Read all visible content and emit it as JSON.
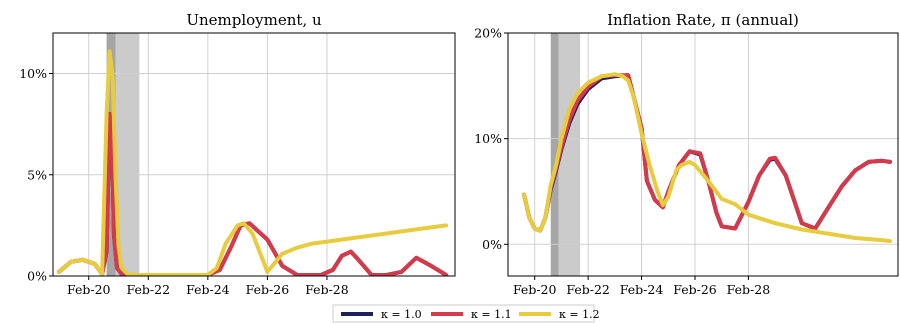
{
  "chart_data": [
    {
      "type": "line",
      "title": "Unemployment, u",
      "x_ticks": [
        "Feb-20",
        "Feb-22",
        "Feb-24",
        "Feb-26",
        "Feb-28"
      ],
      "y_ticks": [
        "0%",
        "5%",
        "10%"
      ],
      "ylim": [
        0,
        12
      ],
      "grid": true,
      "shaded_periods": [
        {
          "start": 0.6,
          "end": 0.9,
          "shade": "dark-gray"
        },
        {
          "start": 0.9,
          "end": 1.7,
          "shade": "light-gray"
        }
      ],
      "series": [
        {
          "name": "κ = 1.0",
          "color": "#1f1f5c",
          "x": [
            -1.0,
            -0.6,
            -0.2,
            0.2,
            0.45,
            0.6,
            0.7,
            0.78,
            0.85,
            0.95,
            1.1,
            1.4,
            2.0,
            3.0,
            3.4,
            4.0,
            4.4,
            4.8,
            5.1,
            5.4,
            6.0,
            6.5,
            7.0,
            7.5,
            7.8,
            8.2,
            8.5,
            8.8,
            9.0,
            9.5,
            10.0,
            10.5,
            11.0,
            11.5,
            12.0
          ],
          "values": [
            0.2,
            0.7,
            0.8,
            0.6,
            0.1,
            1.2,
            8.0,
            6.5,
            2.0,
            0.4,
            0.1,
            0.05,
            0.05,
            0.05,
            0.05,
            0.05,
            0.3,
            1.5,
            2.5,
            2.6,
            1.8,
            0.5,
            0.05,
            0.05,
            0.05,
            0.3,
            1.0,
            1.2,
            0.9,
            0.05,
            0.05,
            0.2,
            0.9,
            0.5,
            0.05
          ]
        },
        {
          "name": "κ = 1.1",
          "color": "#d43a4a",
          "x": [
            -1.0,
            -0.6,
            -0.2,
            0.2,
            0.45,
            0.6,
            0.7,
            0.78,
            0.85,
            0.95,
            1.1,
            1.4,
            2.0,
            3.0,
            3.4,
            4.0,
            4.4,
            4.8,
            5.1,
            5.4,
            6.0,
            6.5,
            7.0,
            7.5,
            7.8,
            8.2,
            8.5,
            8.8,
            9.0,
            9.5,
            10.0,
            10.5,
            11.0,
            11.5,
            12.0
          ],
          "values": [
            0.2,
            0.7,
            0.8,
            0.6,
            0.1,
            1.2,
            8.0,
            6.5,
            2.0,
            0.4,
            0.1,
            0.05,
            0.05,
            0.05,
            0.05,
            0.05,
            0.3,
            1.5,
            2.5,
            2.6,
            1.8,
            0.5,
            0.05,
            0.05,
            0.05,
            0.3,
            1.0,
            1.2,
            0.9,
            0.05,
            0.05,
            0.2,
            0.9,
            0.5,
            0.05
          ]
        },
        {
          "name": "κ = 1.2",
          "color": "#e8cc3f",
          "x": [
            -1.0,
            -0.6,
            -0.2,
            0.2,
            0.45,
            0.6,
            0.7,
            0.8,
            0.9,
            1.0,
            1.1,
            1.3,
            1.6,
            2.0,
            3.0,
            4.0,
            4.3,
            4.6,
            5.0,
            5.2,
            5.5,
            6.0,
            6.5,
            7.0,
            7.5,
            8.0,
            9.0,
            10.0,
            11.0,
            12.0
          ],
          "values": [
            0.2,
            0.7,
            0.8,
            0.6,
            0.1,
            8.0,
            11.1,
            9.8,
            5.0,
            1.5,
            0.4,
            0.1,
            0.05,
            0.05,
            0.05,
            0.05,
            0.4,
            1.6,
            2.5,
            2.6,
            2.1,
            0.2,
            1.1,
            1.4,
            1.6,
            1.7,
            1.9,
            2.1,
            2.3,
            2.5
          ]
        }
      ]
    },
    {
      "type": "line",
      "title": "Inflation Rate, π (annual)",
      "x_ticks": [
        "Feb-20",
        "Feb-22",
        "Feb-24",
        "Feb-26",
        "Feb-28"
      ],
      "y_ticks": [
        "0%",
        "10%",
        "20%"
      ],
      "ylim": [
        -3,
        20
      ],
      "grid": true,
      "shaded_periods": [
        {
          "start": 0.6,
          "end": 0.9,
          "shade": "dark-gray"
        },
        {
          "start": 0.9,
          "end": 1.7,
          "shade": "light-gray"
        }
      ],
      "series": [
        {
          "name": "κ = 1.0",
          "color": "#1f1f5c",
          "x": [
            -0.4,
            -0.2,
            0.0,
            0.2,
            0.4,
            0.6,
            0.8,
            1.0,
            1.3,
            1.6,
            2.0,
            2.5,
            3.0,
            3.5,
            4.0,
            4.2,
            4.5,
            4.8,
            5.0,
            5.4,
            5.8,
            6.2,
            6.5,
            6.8,
            7.0,
            7.5,
            8.0,
            8.4,
            8.8,
            9.0,
            9.4,
            10.0,
            10.5,
            11.0,
            11.5,
            12.0,
            12.5,
            13.0,
            13.3
          ],
          "values": [
            4.7,
            2.5,
            1.5,
            1.3,
            2.5,
            5.2,
            7.0,
            9.0,
            11.5,
            13.3,
            14.7,
            15.7,
            15.9,
            16.0,
            11.0,
            6.0,
            4.2,
            3.5,
            5.0,
            7.5,
            8.8,
            8.5,
            6.0,
            3.0,
            1.7,
            1.5,
            4.0,
            6.5,
            8.0,
            8.1,
            6.5,
            2.0,
            1.5,
            3.5,
            5.5,
            7.0,
            7.8,
            7.9,
            7.8
          ]
        },
        {
          "name": "κ = 1.1",
          "color": "#d43a4a",
          "x": [
            -0.4,
            -0.2,
            0.0,
            0.2,
            0.4,
            0.6,
            0.8,
            1.0,
            1.3,
            1.6,
            2.0,
            2.5,
            3.0,
            3.5,
            4.0,
            4.2,
            4.5,
            4.8,
            5.0,
            5.4,
            5.8,
            6.2,
            6.5,
            6.8,
            7.0,
            7.5,
            8.0,
            8.4,
            8.8,
            9.0,
            9.4,
            10.0,
            10.5,
            11.0,
            11.5,
            12.0,
            12.5,
            13.0,
            13.3
          ],
          "values": [
            4.7,
            2.5,
            1.5,
            1.3,
            2.5,
            5.4,
            7.2,
            9.2,
            11.8,
            13.6,
            14.9,
            15.9,
            16.0,
            16.0,
            11.0,
            6.0,
            4.2,
            3.5,
            5.0,
            7.5,
            8.8,
            8.6,
            6.0,
            3.0,
            1.7,
            1.5,
            4.0,
            6.5,
            8.1,
            8.2,
            6.5,
            2.0,
            1.5,
            3.5,
            5.5,
            7.0,
            7.8,
            7.9,
            7.8
          ]
        },
        {
          "name": "κ = 1.2",
          "color": "#e8cc3f",
          "x": [
            -0.4,
            -0.2,
            0.0,
            0.2,
            0.4,
            0.6,
            0.8,
            1.0,
            1.3,
            1.6,
            2.0,
            2.5,
            3.0,
            3.3,
            3.5,
            3.7,
            4.0,
            4.3,
            4.6,
            4.8,
            5.0,
            5.3,
            5.5,
            5.8,
            6.0,
            6.5,
            7.0,
            7.5,
            8.0,
            9.0,
            10.0,
            11.0,
            12.0,
            13.0,
            13.3
          ],
          "values": [
            4.7,
            2.5,
            1.5,
            1.3,
            2.5,
            5.6,
            7.5,
            10.0,
            12.8,
            14.3,
            15.3,
            15.9,
            16.1,
            15.9,
            15.5,
            14.0,
            10.5,
            7.5,
            5.0,
            3.7,
            4.5,
            7.0,
            7.5,
            7.8,
            7.5,
            6.0,
            4.3,
            3.8,
            2.8,
            2.0,
            1.4,
            1.0,
            0.6,
            0.4,
            0.3
          ]
        }
      ]
    }
  ],
  "legend": {
    "items": [
      {
        "label": "κ = 1.0",
        "color": "#1f1f5c"
      },
      {
        "label": "κ = 1.1",
        "color": "#d43a4a"
      },
      {
        "label": "κ = 1.2",
        "color": "#e8cc3f"
      }
    ]
  }
}
